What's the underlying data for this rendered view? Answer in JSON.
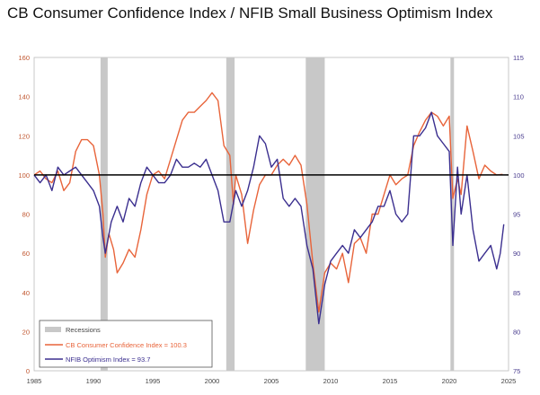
{
  "title": "CB Consumer Confidence Index /  NFIB Small Business Optimism Index",
  "colors": {
    "consumer": "#e8643a",
    "nfib": "#3b2f8f",
    "recession": "#c8c8c8",
    "baseline": "#000000",
    "left_axis": "#c0562f",
    "right_axis": "#4a3d8f"
  },
  "chart_data": {
    "type": "line",
    "title": "CB Consumer Confidence Index /  NFIB Small Business Optimism Index",
    "x_ticks": [
      "1985",
      "1990",
      "1995",
      "2000",
      "2005",
      "2010",
      "2015",
      "2020",
      "2025"
    ],
    "xlim": [
      1985,
      2025
    ],
    "left_axis": {
      "ticks": [
        "0",
        "20",
        "40",
        "60",
        "80",
        "100",
        "120",
        "140",
        "160"
      ],
      "ylim": [
        0,
        160
      ]
    },
    "right_axis": {
      "ticks": [
        "75",
        "80",
        "85",
        "90",
        "95",
        "100",
        "105",
        "110",
        "115"
      ],
      "ylim": [
        75,
        115
      ]
    },
    "baseline": {
      "axis": "left",
      "value": 100
    },
    "recessions": [
      [
        1990.6,
        1991.2
      ],
      [
        2001.2,
        2001.9
      ],
      [
        2007.9,
        2009.5
      ],
      [
        2020.1,
        2020.4
      ]
    ],
    "legend": {
      "recessions": "Recessions",
      "consumer": "CB Consumer Confidence Index = 100.3",
      "nfib": "NFIB Optimism Index = 93.7"
    },
    "series": [
      {
        "name": "CB Consumer Confidence Index",
        "axis": "left",
        "points": [
          [
            1985,
            100
          ],
          [
            1985.5,
            102
          ],
          [
            1986,
            98
          ],
          [
            1986.5,
            96
          ],
          [
            1987,
            102
          ],
          [
            1987.5,
            92
          ],
          [
            1988,
            96
          ],
          [
            1988.5,
            112
          ],
          [
            1989,
            118
          ],
          [
            1989.5,
            118
          ],
          [
            1990,
            115
          ],
          [
            1990.5,
            100
          ],
          [
            1990.8,
            80
          ],
          [
            1991,
            58
          ],
          [
            1991.3,
            70
          ],
          [
            1991.7,
            62
          ],
          [
            1992,
            50
          ],
          [
            1992.5,
            55
          ],
          [
            1993,
            62
          ],
          [
            1993.5,
            58
          ],
          [
            1994,
            72
          ],
          [
            1994.5,
            90
          ],
          [
            1995,
            100
          ],
          [
            1995.5,
            102
          ],
          [
            1996,
            98
          ],
          [
            1996.5,
            108
          ],
          [
            1997,
            118
          ],
          [
            1997.5,
            128
          ],
          [
            1998,
            132
          ],
          [
            1998.5,
            132
          ],
          [
            1999,
            135
          ],
          [
            1999.5,
            138
          ],
          [
            2000,
            142
          ],
          [
            2000.5,
            138
          ],
          [
            2001,
            115
          ],
          [
            2001.5,
            110
          ],
          [
            2001.8,
            85
          ],
          [
            2002,
            100
          ],
          [
            2002.5,
            90
          ],
          [
            2003,
            65
          ],
          [
            2003.5,
            82
          ],
          [
            2004,
            95
          ],
          [
            2004.5,
            100
          ],
          [
            2005,
            100
          ],
          [
            2005.5,
            105
          ],
          [
            2006,
            108
          ],
          [
            2006.5,
            105
          ],
          [
            2007,
            110
          ],
          [
            2007.5,
            105
          ],
          [
            2008,
            85
          ],
          [
            2008.5,
            55
          ],
          [
            2009,
            30
          ],
          [
            2009.5,
            50
          ],
          [
            2010,
            55
          ],
          [
            2010.5,
            52
          ],
          [
            2011,
            60
          ],
          [
            2011.5,
            45
          ],
          [
            2012,
            65
          ],
          [
            2012.5,
            68
          ],
          [
            2013,
            60
          ],
          [
            2013.5,
            80
          ],
          [
            2014,
            80
          ],
          [
            2014.5,
            90
          ],
          [
            2015,
            100
          ],
          [
            2015.5,
            95
          ],
          [
            2016,
            98
          ],
          [
            2016.5,
            100
          ],
          [
            2017,
            115
          ],
          [
            2017.5,
            122
          ],
          [
            2018,
            128
          ],
          [
            2018.5,
            132
          ],
          [
            2019,
            130
          ],
          [
            2019.5,
            125
          ],
          [
            2020,
            130
          ],
          [
            2020.3,
            88
          ],
          [
            2020.7,
            98
          ],
          [
            2021,
            90
          ],
          [
            2021.5,
            125
          ],
          [
            2022,
            112
          ],
          [
            2022.5,
            98
          ],
          [
            2023,
            105
          ],
          [
            2023.5,
            102
          ],
          [
            2024,
            100
          ],
          [
            2024.5,
            100.3
          ]
        ]
      },
      {
        "name": "NFIB Optimism Index",
        "axis": "right",
        "points": [
          [
            1985,
            100
          ],
          [
            1985.5,
            99
          ],
          [
            1986,
            100
          ],
          [
            1986.5,
            98
          ],
          [
            1987,
            101
          ],
          [
            1987.5,
            100
          ],
          [
            1988,
            100.5
          ],
          [
            1988.5,
            101
          ],
          [
            1989,
            100
          ],
          [
            1989.5,
            99
          ],
          [
            1990,
            98
          ],
          [
            1990.5,
            96
          ],
          [
            1990.8,
            92
          ],
          [
            1991,
            90
          ],
          [
            1991.5,
            94
          ],
          [
            1992,
            96
          ],
          [
            1992.5,
            94
          ],
          [
            1993,
            97
          ],
          [
            1993.5,
            96
          ],
          [
            1994,
            99
          ],
          [
            1994.5,
            101
          ],
          [
            1995,
            100
          ],
          [
            1995.5,
            99
          ],
          [
            1996,
            99
          ],
          [
            1996.5,
            100
          ],
          [
            1997,
            102
          ],
          [
            1997.5,
            101
          ],
          [
            1998,
            101
          ],
          [
            1998.5,
            101.5
          ],
          [
            1999,
            101
          ],
          [
            1999.5,
            102
          ],
          [
            2000,
            100
          ],
          [
            2000.5,
            98
          ],
          [
            2001,
            94
          ],
          [
            2001.5,
            94
          ],
          [
            2002,
            98
          ],
          [
            2002.5,
            96
          ],
          [
            2003,
            98
          ],
          [
            2003.5,
            101
          ],
          [
            2004,
            105
          ],
          [
            2004.5,
            104
          ],
          [
            2005,
            101
          ],
          [
            2005.5,
            102
          ],
          [
            2006,
            97
          ],
          [
            2006.5,
            96
          ],
          [
            2007,
            97
          ],
          [
            2007.5,
            96
          ],
          [
            2008,
            91
          ],
          [
            2008.5,
            88
          ],
          [
            2009,
            81
          ],
          [
            2009.5,
            86
          ],
          [
            2010,
            89
          ],
          [
            2010.5,
            90
          ],
          [
            2011,
            91
          ],
          [
            2011.5,
            90
          ],
          [
            2012,
            93
          ],
          [
            2012.5,
            92
          ],
          [
            2013,
            93
          ],
          [
            2013.5,
            94
          ],
          [
            2014,
            96
          ],
          [
            2014.5,
            96
          ],
          [
            2015,
            98
          ],
          [
            2015.5,
            95
          ],
          [
            2016,
            94
          ],
          [
            2016.5,
            95
          ],
          [
            2017,
            105
          ],
          [
            2017.5,
            105
          ],
          [
            2018,
            106
          ],
          [
            2018.5,
            108
          ],
          [
            2019,
            105
          ],
          [
            2019.5,
            104
          ],
          [
            2020,
            103
          ],
          [
            2020.3,
            91
          ],
          [
            2020.7,
            101
          ],
          [
            2021,
            95
          ],
          [
            2021.5,
            100
          ],
          [
            2022,
            93
          ],
          [
            2022.5,
            89
          ],
          [
            2023,
            90
          ],
          [
            2023.5,
            91
          ],
          [
            2024,
            88
          ],
          [
            2024.3,
            90
          ],
          [
            2024.6,
            93.7
          ]
        ]
      }
    ]
  }
}
